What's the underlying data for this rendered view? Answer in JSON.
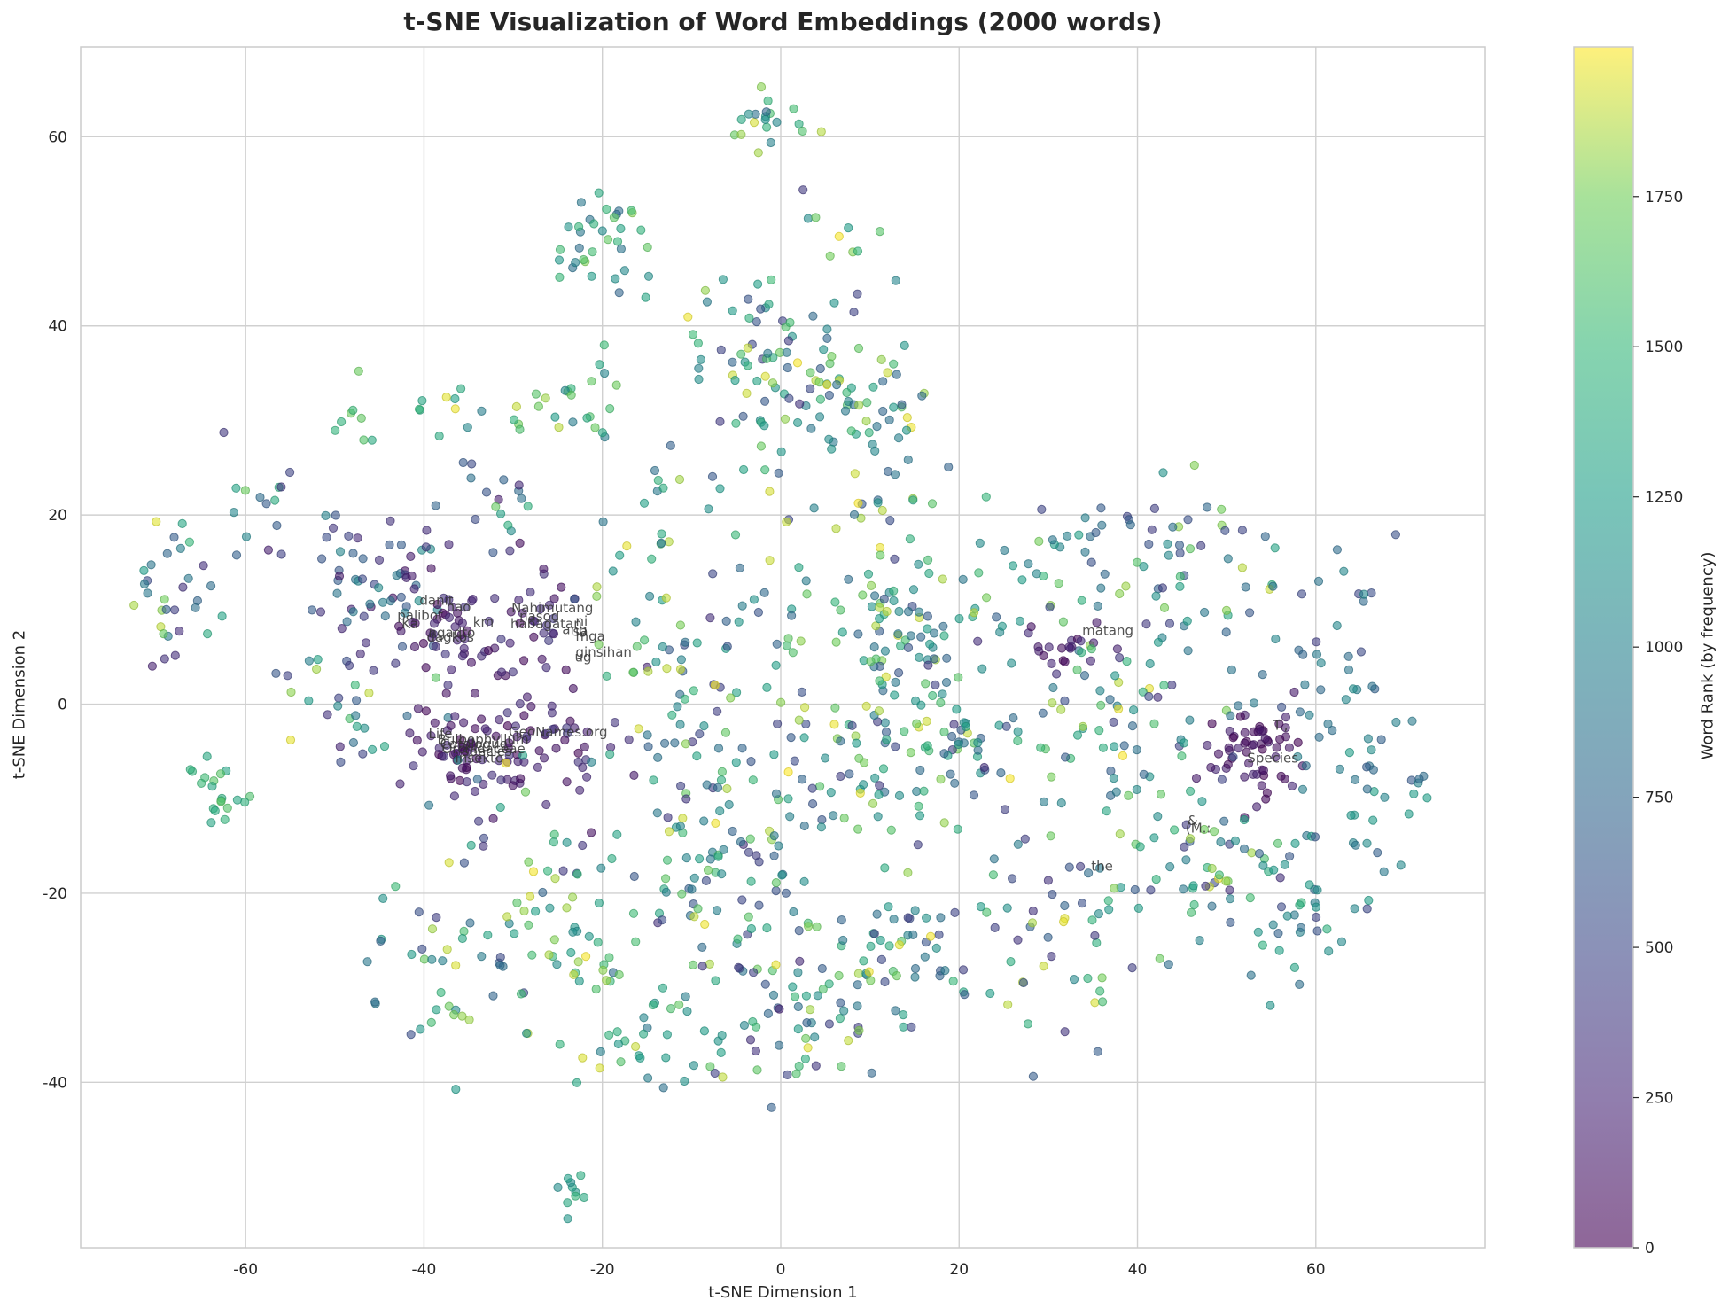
{
  "chart_data": {
    "type": "scatter",
    "title": "t-SNE Visualization of Word Embeddings (2000 words)",
    "xlabel": "t-SNE Dimension 1",
    "ylabel": "t-SNE Dimension 2",
    "xlim": [
      -78.5,
      79
    ],
    "ylim": [
      -57.5,
      69.5
    ],
    "xticks": [
      -60,
      -40,
      -20,
      0,
      20,
      40,
      60
    ],
    "yticks": [
      -40,
      -20,
      0,
      20,
      40,
      60
    ],
    "grid": true,
    "n_points": 2000,
    "marker_alpha": 0.6,
    "colormap": "viridis",
    "colorbar": {
      "label": "Word Rank (by frequency)",
      "range": [
        0,
        1999
      ],
      "ticks": [
        0,
        250,
        500,
        750,
        1000,
        1250,
        1500,
        1750
      ],
      "position": "right"
    },
    "clusters": [
      {
        "x": -1,
        "y": 62,
        "n": 20,
        "spread": 2,
        "rank": [
          600,
          1999
        ]
      },
      {
        "x": -20,
        "y": 49,
        "n": 35,
        "spread": 3,
        "rank": [
          700,
          1800
        ]
      },
      {
        "x": -22,
        "y": 32,
        "n": 20,
        "spread": 2.5,
        "rank": [
          900,
          1900
        ]
      },
      {
        "x": 0,
        "y": 37,
        "n": 90,
        "spread": 6,
        "rank": [
          300,
          1999
        ]
      },
      {
        "x": 10,
        "y": 30,
        "n": 45,
        "spread": 4,
        "rank": [
          600,
          1999
        ]
      },
      {
        "x": 8,
        "y": 48,
        "n": 8,
        "spread": 2,
        "rank": [
          900,
          1999
        ]
      },
      {
        "x": -36,
        "y": 32,
        "n": 12,
        "spread": 2.5,
        "rank": [
          700,
          1999
        ]
      },
      {
        "x": -48,
        "y": 30,
        "n": 8,
        "spread": 2,
        "rank": [
          1200,
          1900
        ]
      },
      {
        "x": -30,
        "y": 23,
        "n": 20,
        "spread": 3,
        "rank": [
          100,
          1900
        ]
      },
      {
        "x": -45,
        "y": 13,
        "n": 60,
        "spread": 4,
        "rank": [
          100,
          1100
        ]
      },
      {
        "x": -68,
        "y": 11,
        "n": 30,
        "spread": 3,
        "rank": [
          200,
          1999
        ]
      },
      {
        "x": -60,
        "y": 20,
        "n": 14,
        "spread": 2.5,
        "rank": [
          300,
          1900
        ]
      },
      {
        "x": -38,
        "y": 8,
        "n": 40,
        "spread": 3,
        "rank": [
          0,
          400
        ]
      },
      {
        "x": -28,
        "y": 8,
        "n": 40,
        "spread": 3,
        "rank": [
          0,
          400
        ]
      },
      {
        "x": -50,
        "y": 0,
        "n": 30,
        "spread": 4,
        "rank": [
          200,
          1999
        ]
      },
      {
        "x": -35,
        "y": -5,
        "n": 70,
        "spread": 3,
        "rank": [
          0,
          350
        ]
      },
      {
        "x": -25,
        "y": -4,
        "n": 40,
        "spread": 4,
        "rank": [
          0,
          400
        ]
      },
      {
        "x": -63,
        "y": -9,
        "n": 20,
        "spread": 2,
        "rank": [
          1300,
          1700
        ]
      },
      {
        "x": -30,
        "y": -18,
        "n": 40,
        "spread": 6,
        "rank": [
          300,
          1999
        ]
      },
      {
        "x": -40,
        "y": -28,
        "n": 30,
        "spread": 5,
        "rank": [
          400,
          1999
        ]
      },
      {
        "x": -24,
        "y": -28,
        "n": 30,
        "spread": 4,
        "rank": [
          400,
          1999
        ]
      },
      {
        "x": -14,
        "y": -35,
        "n": 30,
        "spread": 4,
        "rank": [
          800,
          1999
        ]
      },
      {
        "x": -24,
        "y": -51,
        "n": 10,
        "spread": 1.5,
        "rank": [
          1000,
          1500
        ]
      },
      {
        "x": -6,
        "y": -18,
        "n": 130,
        "spread": 8,
        "rank": [
          300,
          1999
        ]
      },
      {
        "x": 2,
        "y": -32,
        "n": 45,
        "spread": 5,
        "rank": [
          200,
          1999
        ]
      },
      {
        "x": 14,
        "y": -26,
        "n": 50,
        "spread": 4,
        "rank": [
          400,
          1999
        ]
      },
      {
        "x": 2,
        "y": 6,
        "n": 70,
        "spread": 8,
        "rank": [
          300,
          1999
        ]
      },
      {
        "x": 14,
        "y": 10,
        "n": 70,
        "spread": 5,
        "rank": [
          500,
          1999
        ]
      },
      {
        "x": 14,
        "y": -6,
        "n": 70,
        "spread": 6,
        "rank": [
          300,
          1999
        ]
      },
      {
        "x": 32,
        "y": 14,
        "n": 40,
        "spread": 5,
        "rank": [
          300,
          1999
        ]
      },
      {
        "x": 32,
        "y": 6,
        "n": 20,
        "spread": 2,
        "rank": [
          0,
          300
        ]
      },
      {
        "x": 38,
        "y": -2,
        "n": 60,
        "spread": 5,
        "rank": [
          300,
          1999
        ]
      },
      {
        "x": 32,
        "y": -22,
        "n": 60,
        "spread": 6,
        "rank": [
          300,
          1999
        ]
      },
      {
        "x": 46,
        "y": 15,
        "n": 40,
        "spread": 5,
        "rank": [
          300,
          1999
        ]
      },
      {
        "x": 53,
        "y": -5,
        "n": 60,
        "spread": 2.5,
        "rank": [
          0,
          250
        ]
      },
      {
        "x": 48,
        "y": -17,
        "n": 50,
        "spread": 5,
        "rank": [
          300,
          1999
        ]
      },
      {
        "x": 60,
        "y": 4,
        "n": 40,
        "spread": 5,
        "rank": [
          400,
          1100
        ]
      },
      {
        "x": 66,
        "y": -10,
        "n": 40,
        "spread": 5,
        "rank": [
          600,
          1300
        ]
      },
      {
        "x": 58,
        "y": -22,
        "n": 30,
        "spread": 4,
        "rank": [
          500,
          1500
        ]
      },
      {
        "x": -14,
        "y": 4,
        "n": 40,
        "spread": 6,
        "rank": [
          300,
          1999
        ]
      },
      {
        "x": -12,
        "y": 20,
        "n": 20,
        "spread": 5,
        "rank": [
          600,
          1999
        ]
      },
      {
        "x": 22,
        "y": -4,
        "n": 30,
        "spread": 4,
        "rank": [
          300,
          1999
        ]
      }
    ],
    "annotations": [
      {
        "text": "danit",
        "x": -40.5,
        "y": 10.5
      },
      {
        "text": "nao",
        "x": -37.5,
        "y": 9.8
      },
      {
        "text": "palibot",
        "x": -43.0,
        "y": 8.9
      },
      {
        "text": "Ka",
        "x": -42.5,
        "y": 8.0
      },
      {
        "text": "km",
        "x": -34.5,
        "y": 8.2
      },
      {
        "text": "ngadto",
        "x": -39.5,
        "y": 7.1
      },
      {
        "text": "dagkos",
        "x": -39.7,
        "y": 6.6
      },
      {
        "text": "Nahimutang",
        "x": -30.2,
        "y": 9.7
      },
      {
        "text": "nasod",
        "x": -29.3,
        "y": 8.8
      },
      {
        "text": "habagatan",
        "x": -30.3,
        "y": 8.0
      },
      {
        "text": "ang",
        "x": -24.5,
        "y": 7.4
      },
      {
        "text": "ni",
        "x": -23.0,
        "y": 8.3
      },
      {
        "text": "mga",
        "x": -23.0,
        "y": 6.7
      },
      {
        "text": "sa",
        "x": -23.3,
        "y": 7.2
      },
      {
        "text": "ginsihan",
        "x": -23.0,
        "y": 5.0
      },
      {
        "text": "ug",
        "x": -23.1,
        "y": 4.5
      },
      {
        "text": "GeoNames.org",
        "x": -30.5,
        "y": -3.4
      },
      {
        "text": "Life",
        "x": -39.5,
        "y": -3.6
      },
      {
        "text": "Bulbophyllum",
        "x": -38.5,
        "y": -4.2
      },
      {
        "text": "Catalogue",
        "x": -38.2,
        "y": -4.7
      },
      {
        "text": "species",
        "x": -35.7,
        "y": -5.5
      },
      {
        "text": "Orchidaceae",
        "x": -38.0,
        "y": -5.2
      },
      {
        "text": "insekto",
        "x": -36.5,
        "y": -6.2
      },
      {
        "text": "matang",
        "x": 33.8,
        "y": 7.3
      },
      {
        "text": "T.,",
        "x": 55.2,
        "y": -2.7
      },
      {
        "text": "Species",
        "x": 52.3,
        "y": -6.2
      },
      {
        "text": "&",
        "x": 45.6,
        "y": -12.8
      },
      {
        "text": "(M.:",
        "x": 45.4,
        "y": -13.6
      },
      {
        "text": "the",
        "x": 34.8,
        "y": -17.6
      }
    ]
  },
  "colorbar": {
    "tick_labels": [
      "0",
      "250",
      "500",
      "750",
      "1000",
      "1250",
      "1500",
      "1750"
    ],
    "label": "Word Rank (by frequency)"
  },
  "axes": {
    "x_tick_labels": [
      "-60",
      "-40",
      "-20",
      "0",
      "20",
      "40",
      "60"
    ],
    "y_tick_labels": [
      "-40",
      "-20",
      "0",
      "20",
      "40",
      "60"
    ],
    "xlabel": "t-SNE Dimension 1",
    "ylabel": "t-SNE Dimension 2"
  },
  "title": "t-SNE Visualization of Word Embeddings (2000 words)"
}
